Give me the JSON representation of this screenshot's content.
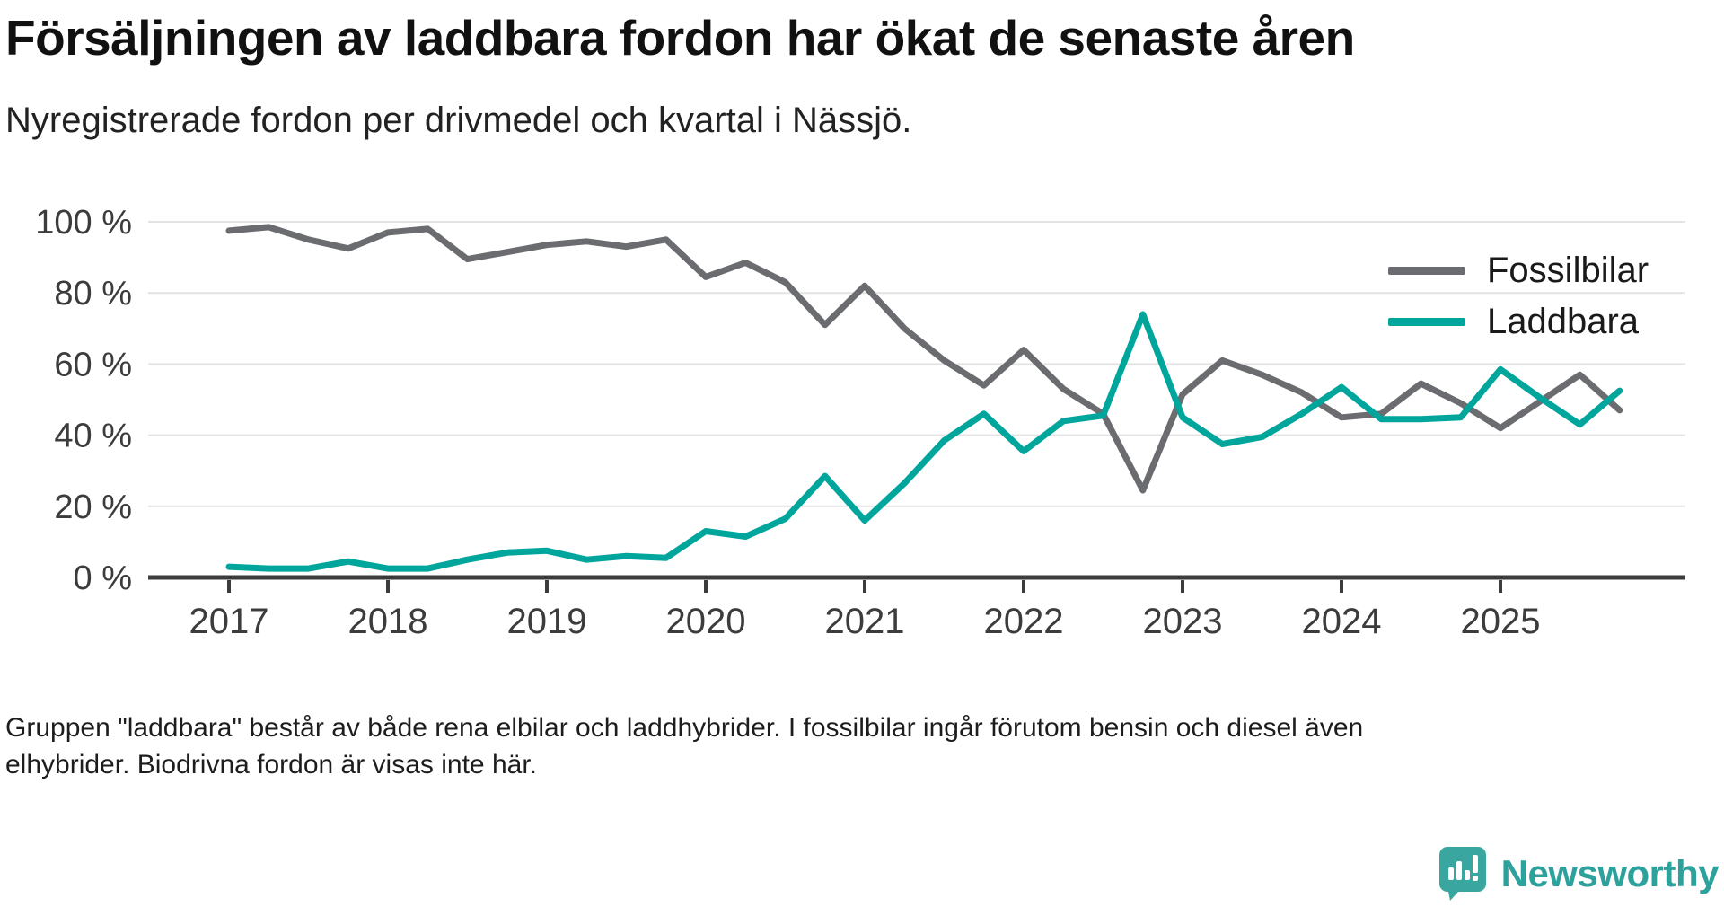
{
  "title": "Försäljningen av laddbara fordon har ökat de senaste åren",
  "subtitle": "Nyregistrerade fordon per drivmedel och kvartal i Nässjö.",
  "legend": {
    "items": [
      {
        "label": "Fossilbilar",
        "color": "#6b6c70"
      },
      {
        "label": "Laddbara",
        "color": "#00a69c"
      }
    ]
  },
  "footer": {
    "line1": "Gruppen \"laddbara\" består av både rena elbilar och laddhybrider. I fossilbilar ingår förutom bensin och diesel även",
    "line2": "elhybrider. Biodrivna fordon är visas inte här."
  },
  "logo": {
    "text": "Newsworthy",
    "icon": "newsworthy-speech-bubble-barchart",
    "color": "#3aa6a0"
  },
  "chart_data": {
    "type": "line",
    "title": "Försäljningen av laddbara fordon har ökat de senaste åren",
    "subtitle": "Nyregistrerade fordon per drivmedel och kvartal i Nässjö.",
    "x_years": [
      2017,
      2018,
      2019,
      2020,
      2021,
      2022,
      2023,
      2024,
      2025
    ],
    "categories": [
      "2017 Q1",
      "2017 Q2",
      "2017 Q3",
      "2017 Q4",
      "2018 Q1",
      "2018 Q2",
      "2018 Q3",
      "2018 Q4",
      "2019 Q1",
      "2019 Q2",
      "2019 Q3",
      "2019 Q4",
      "2020 Q1",
      "2020 Q2",
      "2020 Q3",
      "2020 Q4",
      "2021 Q1",
      "2021 Q2",
      "2021 Q3",
      "2021 Q4",
      "2022 Q1",
      "2022 Q2",
      "2022 Q3",
      "2022 Q4",
      "2023 Q1",
      "2023 Q2",
      "2023 Q3",
      "2023 Q4",
      "2024 Q1",
      "2024 Q2",
      "2024 Q3",
      "2024 Q4",
      "2025 Q1",
      "2025 Q2",
      "2025 Q3",
      "2025 Q4"
    ],
    "series": [
      {
        "name": "Fossilbilar",
        "color": "#6b6c70",
        "values": [
          97.5,
          98.5,
          95,
          92.5,
          97,
          98,
          89.5,
          91.5,
          93.5,
          94.5,
          93,
          95,
          84.5,
          88.5,
          83,
          71,
          82,
          70,
          61,
          54,
          64,
          53,
          46,
          24.5,
          51.5,
          61,
          57,
          52,
          45,
          46,
          54.5,
          49,
          42,
          49.5,
          57,
          47
        ]
      },
      {
        "name": "Laddbara",
        "color": "#00a69c",
        "values": [
          3,
          2.5,
          2.5,
          4.5,
          2.5,
          2.5,
          5,
          7,
          7.5,
          5,
          6,
          5.5,
          13,
          11.5,
          16.5,
          28.5,
          16,
          26.5,
          38.5,
          46,
          35.5,
          44,
          45.5,
          74,
          45,
          37.5,
          39.5,
          46,
          53.5,
          44.5,
          44.5,
          45,
          58.5,
          50.5,
          43,
          52.5
        ]
      }
    ],
    "yticks": [
      0,
      20,
      40,
      60,
      80,
      100
    ],
    "ylim": [
      0,
      100
    ],
    "y_suffix": " %",
    "grid": "horizontal",
    "legend_position": "right-top"
  }
}
